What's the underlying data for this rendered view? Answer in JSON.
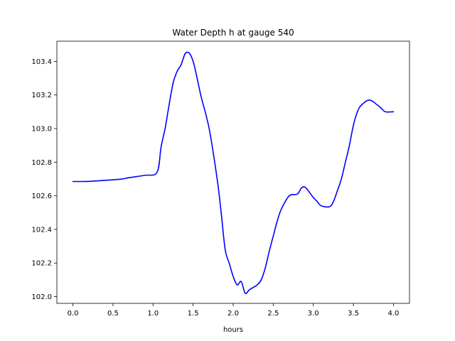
{
  "chart_data": {
    "type": "line",
    "title": "Water Depth h at gauge 540",
    "xlabel": "hours",
    "ylabel": "",
    "xlim": [
      -0.2,
      4.2
    ],
    "ylim": [
      101.96,
      103.52
    ],
    "xticks": [
      0.0,
      0.5,
      1.0,
      1.5,
      2.0,
      2.5,
      3.0,
      3.5,
      4.0
    ],
    "xtick_labels": [
      "0.0",
      "0.5",
      "1.0",
      "1.5",
      "2.0",
      "2.5",
      "3.0",
      "3.5",
      "4.0"
    ],
    "yticks": [
      102.0,
      102.2,
      102.4,
      102.6,
      102.8,
      103.0,
      103.2,
      103.4
    ],
    "ytick_labels": [
      "102.0",
      "102.2",
      "102.4",
      "102.6",
      "102.8",
      "103.0",
      "103.2",
      "103.4"
    ],
    "grid": false,
    "legend": "none",
    "series": [
      {
        "color": "#0000ff",
        "x": [
          0.0,
          0.2,
          0.4,
          0.6,
          0.7,
          0.9,
          1.05,
          1.1,
          1.15,
          1.2,
          1.25,
          1.3,
          1.35,
          1.4,
          1.45,
          1.5,
          1.55,
          1.6,
          1.7,
          1.8,
          1.85,
          1.9,
          1.95,
          2.0,
          2.05,
          2.1,
          2.15,
          2.2,
          2.25,
          2.3,
          2.35,
          2.4,
          2.45,
          2.5,
          2.55,
          2.6,
          2.7,
          2.8,
          2.85,
          2.9,
          3.0,
          3.05,
          3.1,
          3.2,
          3.25,
          3.3,
          3.35,
          3.4,
          3.45,
          3.5,
          3.55,
          3.6,
          3.7,
          3.8,
          3.85,
          3.9,
          4.0
        ],
        "y": [
          102.685,
          102.686,
          102.692,
          102.699,
          102.708,
          102.722,
          102.74,
          102.89,
          103.0,
          103.14,
          103.27,
          103.34,
          103.38,
          103.445,
          103.45,
          103.4,
          103.3,
          103.19,
          103.0,
          102.7,
          102.5,
          102.28,
          102.2,
          102.12,
          102.07,
          102.09,
          102.02,
          102.04,
          102.055,
          102.07,
          102.1,
          102.17,
          102.27,
          102.36,
          102.45,
          102.52,
          102.6,
          102.61,
          102.645,
          102.65,
          102.59,
          102.565,
          102.54,
          102.535,
          102.565,
          102.63,
          102.7,
          102.8,
          102.9,
          103.02,
          103.1,
          103.14,
          103.17,
          103.14,
          103.12,
          103.1,
          103.1
        ]
      }
    ]
  }
}
